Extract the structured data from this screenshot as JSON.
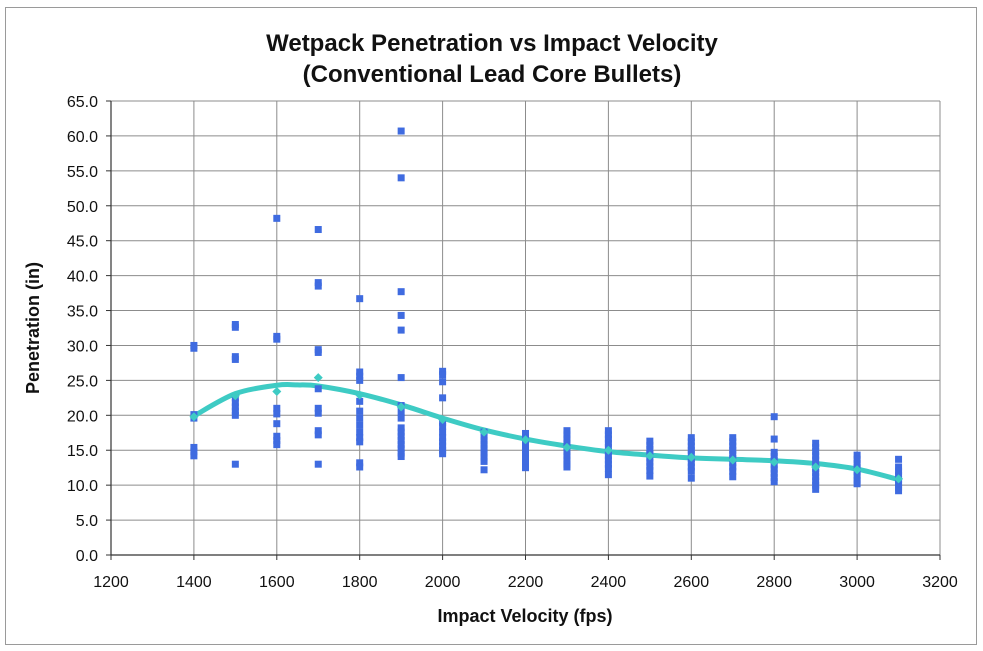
{
  "chart_data": {
    "type": "scatter",
    "title": "Wetpack Penetration vs Impact Velocity",
    "subtitle": "(Conventional Lead Core Bullets)",
    "xlabel": "Impact Velocity (fps)",
    "ylabel": "Penetration (in)",
    "xlim": [
      1200,
      3200
    ],
    "ylim": [
      0,
      65
    ],
    "x_ticks": [
      "1200",
      "1400",
      "1600",
      "1800",
      "2000",
      "2200",
      "2400",
      "2600",
      "2800",
      "3000",
      "3200"
    ],
    "y_ticks": [
      "0.0",
      "5.0",
      "10.0",
      "15.0",
      "20.0",
      "25.0",
      "30.0",
      "35.0",
      "40.0",
      "45.0",
      "50.0",
      "55.0",
      "60.0",
      "65.0"
    ],
    "grid": true,
    "legend": "none",
    "colors": {
      "points": "#3f6be0",
      "trend": "#3ecbc4",
      "grid": "#8c8c8c",
      "frame": "#9a9a9a"
    },
    "series": [
      {
        "marker": "square",
        "points": [
          [
            1400,
            30.0
          ],
          [
            1400,
            29.6
          ],
          [
            1400,
            20.1
          ],
          [
            1400,
            19.6
          ],
          [
            1400,
            15.4
          ],
          [
            1400,
            14.8
          ],
          [
            1400,
            14.2
          ],
          [
            1500,
            33.0
          ],
          [
            1500,
            32.6
          ],
          [
            1500,
            28.4
          ],
          [
            1500,
            28.0
          ],
          [
            1500,
            22.5
          ],
          [
            1500,
            21.8
          ],
          [
            1500,
            21.2
          ],
          [
            1500,
            20.6
          ],
          [
            1500,
            20.0
          ],
          [
            1500,
            13.0
          ],
          [
            1600,
            48.2
          ],
          [
            1600,
            31.3
          ],
          [
            1600,
            30.9
          ],
          [
            1600,
            21.0
          ],
          [
            1600,
            20.2
          ],
          [
            1600,
            18.8
          ],
          [
            1600,
            17.0
          ],
          [
            1600,
            16.4
          ],
          [
            1600,
            15.8
          ],
          [
            1700,
            46.6
          ],
          [
            1700,
            39.0
          ],
          [
            1700,
            38.5
          ],
          [
            1700,
            29.4
          ],
          [
            1700,
            29.0
          ],
          [
            1700,
            23.8
          ],
          [
            1700,
            21.0
          ],
          [
            1700,
            20.3
          ],
          [
            1700,
            17.8
          ],
          [
            1700,
            17.2
          ],
          [
            1700,
            13.0
          ],
          [
            1800,
            36.7
          ],
          [
            1800,
            26.2
          ],
          [
            1800,
            25.6
          ],
          [
            1800,
            25.0
          ],
          [
            1800,
            22.0
          ],
          [
            1800,
            20.6
          ],
          [
            1800,
            19.6
          ],
          [
            1800,
            18.6
          ],
          [
            1800,
            17.6
          ],
          [
            1800,
            16.8
          ],
          [
            1800,
            16.2
          ],
          [
            1800,
            13.2
          ],
          [
            1800,
            12.6
          ],
          [
            1900,
            60.7
          ],
          [
            1900,
            54.0
          ],
          [
            1900,
            37.7
          ],
          [
            1900,
            34.3
          ],
          [
            1900,
            32.2
          ],
          [
            1900,
            25.4
          ],
          [
            1900,
            21.4
          ],
          [
            1900,
            20.4
          ],
          [
            1900,
            19.6
          ],
          [
            1900,
            18.2
          ],
          [
            1900,
            17.6
          ],
          [
            1900,
            17.0
          ],
          [
            1900,
            16.4
          ],
          [
            1900,
            15.8
          ],
          [
            1900,
            15.2
          ],
          [
            1900,
            14.6
          ],
          [
            1900,
            14.1
          ],
          [
            2000,
            26.3
          ],
          [
            2000,
            25.8
          ],
          [
            2000,
            24.8
          ],
          [
            2000,
            22.5
          ],
          [
            2000,
            19.0
          ],
          [
            2000,
            18.4
          ],
          [
            2000,
            17.6
          ],
          [
            2000,
            16.8
          ],
          [
            2000,
            16.2
          ],
          [
            2000,
            15.6
          ],
          [
            2000,
            15.0
          ],
          [
            2000,
            14.5
          ],
          [
            2100,
            17.6
          ],
          [
            2100,
            17.0
          ],
          [
            2100,
            16.4
          ],
          [
            2100,
            15.8
          ],
          [
            2100,
            15.2
          ],
          [
            2100,
            14.6
          ],
          [
            2100,
            14.0
          ],
          [
            2100,
            13.4
          ],
          [
            2100,
            12.2
          ],
          [
            2200,
            17.4
          ],
          [
            2200,
            16.8
          ],
          [
            2200,
            16.2
          ],
          [
            2200,
            15.6
          ],
          [
            2200,
            15.0
          ],
          [
            2200,
            14.4
          ],
          [
            2200,
            13.8
          ],
          [
            2200,
            13.2
          ],
          [
            2200,
            12.5
          ],
          [
            2300,
            17.8
          ],
          [
            2300,
            17.2
          ],
          [
            2300,
            16.6
          ],
          [
            2300,
            16.0
          ],
          [
            2300,
            15.4
          ],
          [
            2300,
            14.8
          ],
          [
            2300,
            14.2
          ],
          [
            2300,
            13.6
          ],
          [
            2300,
            13.0
          ],
          [
            2300,
            12.6
          ],
          [
            2400,
            17.8
          ],
          [
            2400,
            17.2
          ],
          [
            2400,
            16.6
          ],
          [
            2400,
            16.0
          ],
          [
            2400,
            15.4
          ],
          [
            2400,
            14.8
          ],
          [
            2400,
            14.2
          ],
          [
            2400,
            13.6
          ],
          [
            2400,
            13.0
          ],
          [
            2400,
            12.4
          ],
          [
            2400,
            11.5
          ],
          [
            2500,
            16.3
          ],
          [
            2500,
            15.7
          ],
          [
            2500,
            15.1
          ],
          [
            2500,
            14.5
          ],
          [
            2500,
            13.9
          ],
          [
            2500,
            13.3
          ],
          [
            2500,
            12.7
          ],
          [
            2500,
            12.1
          ],
          [
            2500,
            11.3
          ],
          [
            2600,
            16.8
          ],
          [
            2600,
            16.2
          ],
          [
            2600,
            15.6
          ],
          [
            2600,
            15.0
          ],
          [
            2600,
            14.4
          ],
          [
            2600,
            13.8
          ],
          [
            2600,
            13.2
          ],
          [
            2600,
            12.6
          ],
          [
            2600,
            12.0
          ],
          [
            2600,
            11.0
          ],
          [
            2700,
            16.8
          ],
          [
            2700,
            16.2
          ],
          [
            2700,
            15.6
          ],
          [
            2700,
            15.0
          ],
          [
            2700,
            14.4
          ],
          [
            2700,
            13.8
          ],
          [
            2700,
            13.2
          ],
          [
            2700,
            12.6
          ],
          [
            2700,
            12.0
          ],
          [
            2700,
            11.2
          ],
          [
            2800,
            19.8
          ],
          [
            2800,
            16.6
          ],
          [
            2800,
            14.7
          ],
          [
            2800,
            14.1
          ],
          [
            2800,
            13.5
          ],
          [
            2800,
            12.9
          ],
          [
            2800,
            12.3
          ],
          [
            2800,
            11.7
          ],
          [
            2800,
            11.1
          ],
          [
            2800,
            10.5
          ],
          [
            2900,
            16.0
          ],
          [
            2900,
            15.4
          ],
          [
            2900,
            14.8
          ],
          [
            2900,
            14.2
          ],
          [
            2900,
            13.6
          ],
          [
            2900,
            13.0
          ],
          [
            2900,
            12.4
          ],
          [
            2900,
            11.8
          ],
          [
            2900,
            11.2
          ],
          [
            2900,
            10.6
          ],
          [
            2900,
            10.0
          ],
          [
            2900,
            9.4
          ],
          [
            3000,
            14.3
          ],
          [
            3000,
            13.7
          ],
          [
            3000,
            13.1
          ],
          [
            3000,
            12.5
          ],
          [
            3000,
            11.9
          ],
          [
            3000,
            11.3
          ],
          [
            3000,
            10.7
          ],
          [
            3000,
            10.2
          ],
          [
            3100,
            13.7
          ],
          [
            3100,
            12.6
          ],
          [
            3100,
            12.0
          ],
          [
            3100,
            11.4
          ],
          [
            3100,
            10.8
          ],
          [
            3100,
            10.2
          ],
          [
            3100,
            9.7
          ],
          [
            3100,
            9.2
          ]
        ]
      },
      {
        "marker": "diamond",
        "points": [
          [
            1400,
            19.8
          ],
          [
            1500,
            22.8
          ],
          [
            1600,
            23.4
          ],
          [
            1700,
            25.4
          ],
          [
            1800,
            22.9
          ],
          [
            1900,
            21.2
          ],
          [
            2000,
            19.4
          ],
          [
            2100,
            17.6
          ],
          [
            2200,
            16.5
          ],
          [
            2300,
            15.4
          ],
          [
            2400,
            15.0
          ],
          [
            2500,
            14.2
          ],
          [
            2600,
            14.0
          ],
          [
            2700,
            13.6
          ],
          [
            2800,
            13.3
          ],
          [
            2900,
            12.6
          ],
          [
            3000,
            12.2
          ],
          [
            3100,
            10.9
          ]
        ]
      }
    ],
    "trendline": {
      "type": "polynomial",
      "points": [
        [
          1400,
          19.9
        ],
        [
          1500,
          23.1
        ],
        [
          1600,
          24.3
        ],
        [
          1650,
          24.35
        ],
        [
          1700,
          24.2
        ],
        [
          1800,
          23.1
        ],
        [
          1900,
          21.5
        ],
        [
          2000,
          19.6
        ],
        [
          2100,
          17.9
        ],
        [
          2200,
          16.6
        ],
        [
          2300,
          15.6
        ],
        [
          2400,
          14.8
        ],
        [
          2500,
          14.3
        ],
        [
          2600,
          13.9
        ],
        [
          2700,
          13.7
        ],
        [
          2800,
          13.5
        ],
        [
          2900,
          13.1
        ],
        [
          3000,
          12.3
        ],
        [
          3100,
          10.8
        ]
      ]
    }
  }
}
